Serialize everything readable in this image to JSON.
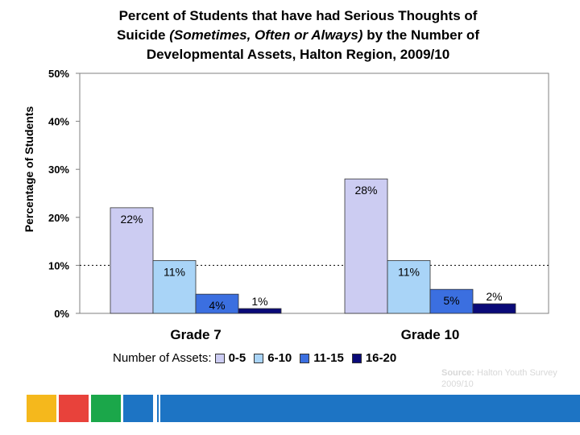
{
  "chart_data": {
    "type": "bar",
    "title_parts": [
      {
        "text": "Percent of Students that have had Serious Thoughts of",
        "italic": false,
        "break": true
      },
      {
        "text": "Suicide ",
        "italic": false,
        "break": false
      },
      {
        "text": "(Sometimes, Often or Always)",
        "italic": true,
        "break": false
      },
      {
        "text": " by the Number of",
        "italic": false,
        "break": true
      },
      {
        "text": "Developmental Assets, Halton Region, 2009/10",
        "italic": false,
        "break": false
      }
    ],
    "ylabel": "Percentage of Students",
    "xlabel": "",
    "ylim": [
      0,
      50
    ],
    "yticks": [
      "0%",
      "10%",
      "20%",
      "30%",
      "40%",
      "50%"
    ],
    "reference_line": 10,
    "categories": [
      "Grade 7",
      "Grade 10"
    ],
    "legend_title": "Number of Assets:",
    "series": [
      {
        "name": "0-5",
        "color": "#ccccf2",
        "values": [
          22,
          28
        ],
        "labels": [
          "22%",
          "28%"
        ]
      },
      {
        "name": "6-10",
        "color": "#a9d4f7",
        "values": [
          11,
          11
        ],
        "labels": [
          "11%",
          "11%"
        ]
      },
      {
        "name": "11-15",
        "color": "#3b6fe0",
        "values": [
          4,
          5
        ],
        "labels": [
          "4%",
          "5%"
        ]
      },
      {
        "name": "16-20",
        "color": "#0a0a78",
        "values": [
          1,
          2
        ],
        "labels": [
          "1%",
          "2%"
        ]
      }
    ]
  },
  "source": {
    "label": "Source:",
    "text": " Halton Youth Survey 2009/10"
  },
  "footer_colors": [
    "#f5b81c",
    "#e8423b",
    "#1ba74a",
    "#1d74c4",
    "#1d74c4",
    "#1d74c4"
  ]
}
